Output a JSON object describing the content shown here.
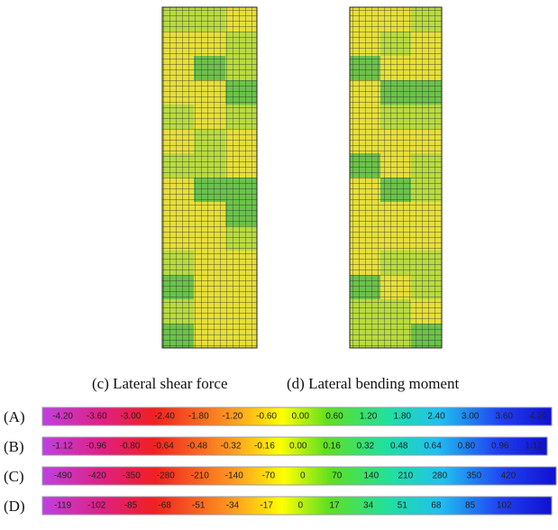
{
  "panels": [
    {
      "caption": "(c) Lateral shear force"
    },
    {
      "caption": "(d) Lateral bending moment"
    }
  ],
  "color_bars": [
    {
      "label": "(A)",
      "ticks": [
        "-4.20",
        "-3.60",
        "-3.00",
        "-2.40",
        "-1.80",
        "-1.20",
        "-0.60",
        "0.00",
        "0.60",
        "1.20",
        "1.80",
        "2.40",
        "3.00",
        "3.60",
        "4.20"
      ]
    },
    {
      "label": "(B)",
      "ticks": [
        "-1.12",
        "-0.96",
        "-0.80",
        "-0.64",
        "-0.48",
        "-0.32",
        "-0.16",
        "0.00",
        "0.16",
        "0.32",
        "0.48",
        "0.64",
        "0.80",
        "0.96",
        "1.12"
      ]
    },
    {
      "label": "(C)",
      "ticks": [
        "-490",
        "-420",
        "-350",
        "-280",
        "-210",
        "-140",
        "-70",
        "0",
        "70",
        "140",
        "210",
        "280",
        "350",
        "420"
      ]
    },
    {
      "label": "(D)",
      "ticks": [
        "-119",
        "-102",
        "-85",
        "-68",
        "-51",
        "-34",
        "-17",
        "0",
        "17",
        "34",
        "51",
        "68",
        "85",
        "102"
      ]
    }
  ]
}
